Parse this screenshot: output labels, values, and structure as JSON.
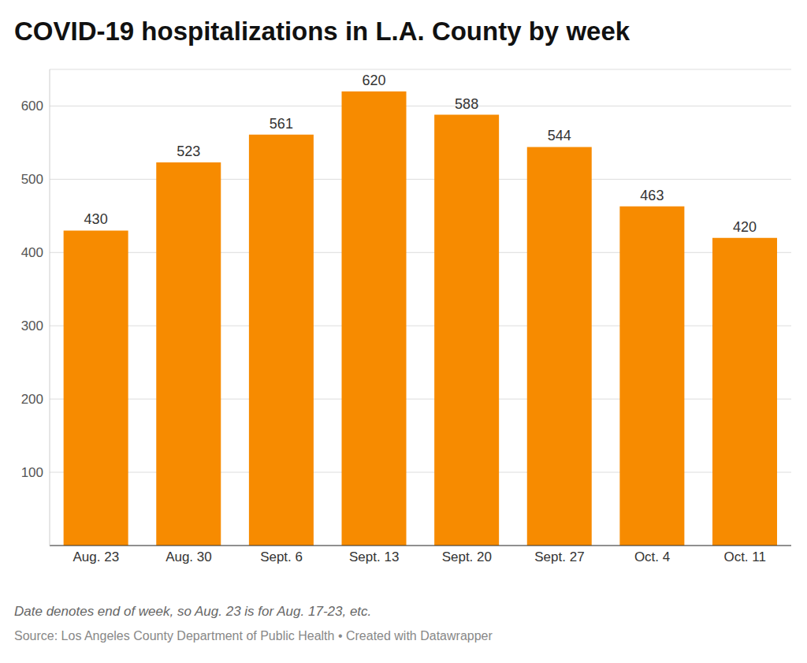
{
  "chart_data": {
    "type": "bar",
    "title": "COVID-19 hospitalizations in L.A. County by week",
    "categories": [
      "Aug. 23",
      "Aug. 30",
      "Sept. 6",
      "Sept. 13",
      "Sept. 20",
      "Sept. 27",
      "Oct. 4",
      "Oct. 11"
    ],
    "values": [
      430,
      523,
      561,
      620,
      588,
      544,
      463,
      420
    ],
    "color": "#f78b00",
    "ylim": [
      0,
      650
    ],
    "yticks": [
      100,
      200,
      300,
      400,
      500,
      600
    ],
    "grid": true,
    "data_labels": true,
    "note": "Date denotes end of week, so Aug. 23 is for Aug. 17-23, etc.",
    "source": "Source: Los Angeles County Department of Public Health • Created with Datawrapper"
  }
}
